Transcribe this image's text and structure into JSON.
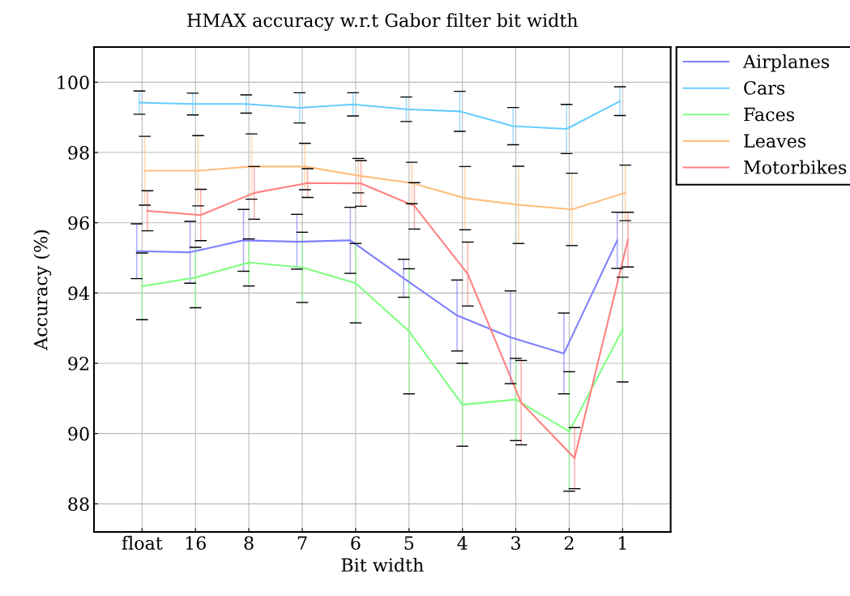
{
  "chart_data": {
    "type": "line",
    "title": "HMAX accuracy w.r.t Gabor filter bit width",
    "xlabel": "Bit width",
    "ylabel": "Accuracy (%)",
    "categories": [
      "float",
      "16",
      "8",
      "7",
      "6",
      "5",
      "4",
      "3",
      "2",
      "1"
    ],
    "series": [
      {
        "name": "Airplanes",
        "color": "#7f7fff",
        "values": [
          95.19,
          95.16,
          95.5,
          95.46,
          95.5,
          94.42,
          93.36,
          92.74,
          92.28,
          95.5
        ],
        "errors": [
          0.78,
          0.88,
          0.88,
          0.78,
          0.94,
          0.54,
          1.01,
          1.32,
          1.15,
          0.8
        ]
      },
      {
        "name": "Cars",
        "color": "#66ccff",
        "values": [
          99.42,
          99.38,
          99.38,
          99.27,
          99.37,
          99.23,
          99.17,
          98.75,
          98.67,
          99.46
        ],
        "errors": [
          0.33,
          0.31,
          0.26,
          0.43,
          0.33,
          0.35,
          0.57,
          0.53,
          0.7,
          0.41
        ]
      },
      {
        "name": "Faces",
        "color": "#80ff80",
        "values": [
          94.19,
          94.44,
          94.87,
          94.73,
          94.28,
          92.91,
          90.82,
          90.97,
          90.06,
          92.96
        ],
        "errors": [
          0.95,
          0.86,
          0.67,
          1.0,
          1.13,
          1.78,
          1.18,
          1.17,
          1.7,
          1.49
        ]
      },
      {
        "name": "Leaves",
        "color": "#ffbf80",
        "values": [
          97.48,
          97.48,
          97.6,
          97.6,
          97.34,
          97.13,
          96.7,
          96.51,
          96.38,
          96.85
        ],
        "errors": [
          0.98,
          1.0,
          0.93,
          0.66,
          0.49,
          0.59,
          0.9,
          1.1,
          1.03,
          0.79
        ]
      },
      {
        "name": "Motorbikes",
        "color": "#ff8080",
        "values": [
          96.34,
          96.22,
          96.85,
          97.13,
          97.12,
          96.48,
          94.54,
          90.88,
          89.3,
          95.52
        ],
        "errors": [
          0.57,
          0.73,
          0.75,
          0.41,
          0.65,
          0.66,
          0.91,
          1.2,
          0.87,
          0.78
        ]
      }
    ],
    "ylim": [
      87.2,
      101.0
    ],
    "yticks": [
      88,
      90,
      92,
      94,
      96,
      98,
      100
    ],
    "grid": true,
    "legend": "top right",
    "marker": "none",
    "line_style": "solid"
  }
}
